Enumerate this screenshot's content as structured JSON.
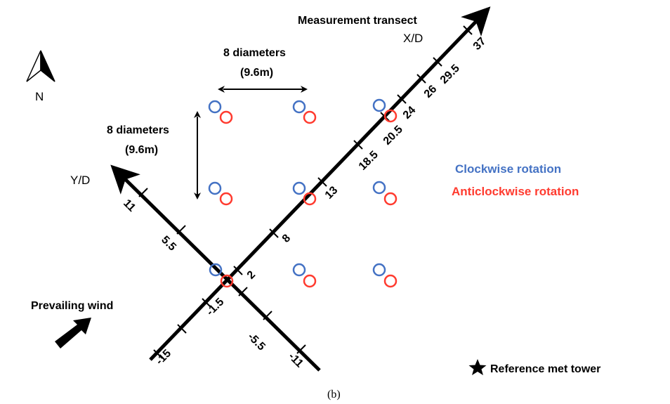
{
  "diagram": {
    "compass_label": "N",
    "spacing_horizontal": {
      "line1": "8 diameters",
      "line2": "(9.6m)"
    },
    "spacing_vertical": {
      "line1": "8 diameters",
      "line2": "(9.6m)"
    },
    "x_axis": {
      "title": "Measurement transect",
      "label": "X/D",
      "ticks": [
        "2",
        "8",
        "13",
        "18.5",
        "20.5",
        "24",
        "26",
        "29.5",
        "37"
      ],
      "negative_ticks": [
        "-1.5",
        "-5.5",
        "-11"
      ]
    },
    "y_axis": {
      "label": "Y/D",
      "ticks": [
        "11",
        "5.5"
      ],
      "negative_ticks": [
        "-15"
      ]
    },
    "legend": {
      "clockwise": {
        "label": "Clockwise rotation",
        "color": "#4472c4"
      },
      "anticlockwise": {
        "label": "Anticlockwise rotation",
        "color": "#ff3b2f"
      }
    },
    "wind_label": "Prevailing wind",
    "met_tower_label": "Reference met tower",
    "caption": "(b)"
  }
}
